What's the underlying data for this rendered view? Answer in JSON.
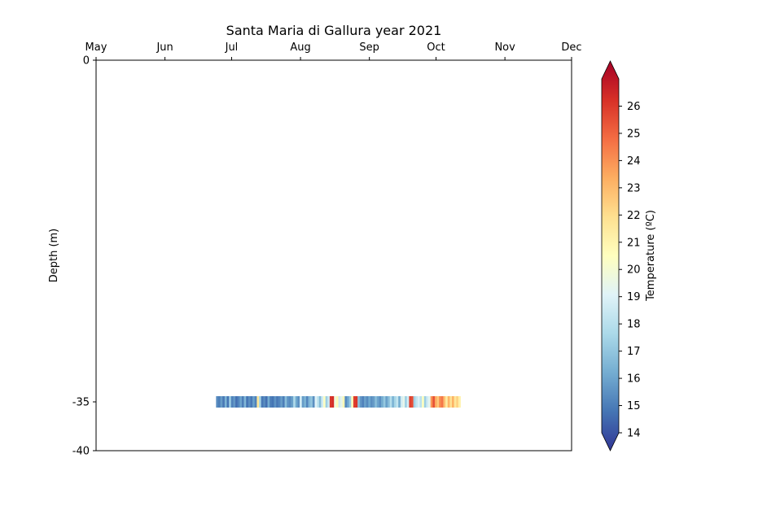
{
  "chart_data": {
    "type": "heatmap",
    "title": "Santa Maria di Gallura year 2021",
    "xlabel": "",
    "ylabel": "Depth (m)",
    "x_ticks": [
      "May",
      "Jun",
      "Jul",
      "Aug",
      "Sep",
      "Oct",
      "Nov",
      "Dec"
    ],
    "x_tick_days": [
      0,
      31,
      61,
      92,
      123,
      153,
      184,
      214
    ],
    "xlim_days": [
      0,
      214
    ],
    "x_origin_date": "2021-05-01",
    "y_ticks": [
      0,
      -35,
      -40
    ],
    "ylim": [
      -40,
      0
    ],
    "grid": false,
    "sensor": {
      "depth": -35,
      "start_day": 54,
      "end_day": 164,
      "temperatures": [
        15.8,
        15.5,
        16.2,
        15.4,
        16.8,
        15.3,
        17.5,
        15.6,
        16.1,
        15.2,
        15.7,
        16.4,
        15.5,
        16.9,
        15.3,
        15.9,
        15.4,
        16.3,
        15.6,
        21.5,
        17.8,
        15.4,
        15.8,
        15.2,
        16.6,
        15.5,
        15.3,
        16.0,
        15.4,
        15.7,
        16.2,
        15.5,
        17.1,
        16.0,
        15.8,
        16.3,
        18.0,
        16.5,
        15.9,
        18.9,
        16.2,
        16.8,
        15.7,
        16.9,
        17.3,
        15.9,
        19.2,
        18.4,
        17.0,
        18.8,
        20.4,
        17.6,
        18.7,
        25.6,
        25.8,
        19.8,
        20.7,
        18.8,
        19.5,
        20.8,
        15.8,
        16.4,
        17.5,
        20.6,
        25.4,
        25.6,
        17.2,
        16.1,
        15.6,
        16.3,
        15.8,
        16.5,
        15.9,
        16.2,
        17.1,
        16.4,
        15.9,
        16.6,
        17.4,
        16.3,
        17.0,
        18.2,
        16.8,
        17.8,
        18.5,
        16.6,
        18.8,
        19.5,
        17.6,
        18.9,
        25.3,
        25.1,
        17.7,
        18.5,
        19.1,
        18.3,
        20.5,
        17.6,
        18.8,
        19.4,
        23.6,
        25.0,
        23.2,
        22.4,
        23.8,
        24.2,
        22.6,
        21.3,
        22.9,
        21.7,
        23.0,
        21.5,
        22.2,
        21.1
      ],
      "clim": [
        14,
        27
      ],
      "colorbar": {
        "label": "Temperature (ºC)",
        "ticks": [
          14,
          15,
          16,
          17,
          18,
          19,
          20,
          21,
          22,
          23,
          24,
          25,
          26
        ],
        "extend": "both"
      }
    }
  },
  "colors": {
    "cmap": [
      "#313695",
      "#4575b4",
      "#74add1",
      "#abd9e9",
      "#e0f3f8",
      "#ffffbf",
      "#fee090",
      "#fdae61",
      "#f46d43",
      "#d73027",
      "#a50026"
    ],
    "axis": "#000000",
    "background": "#ffffff"
  }
}
